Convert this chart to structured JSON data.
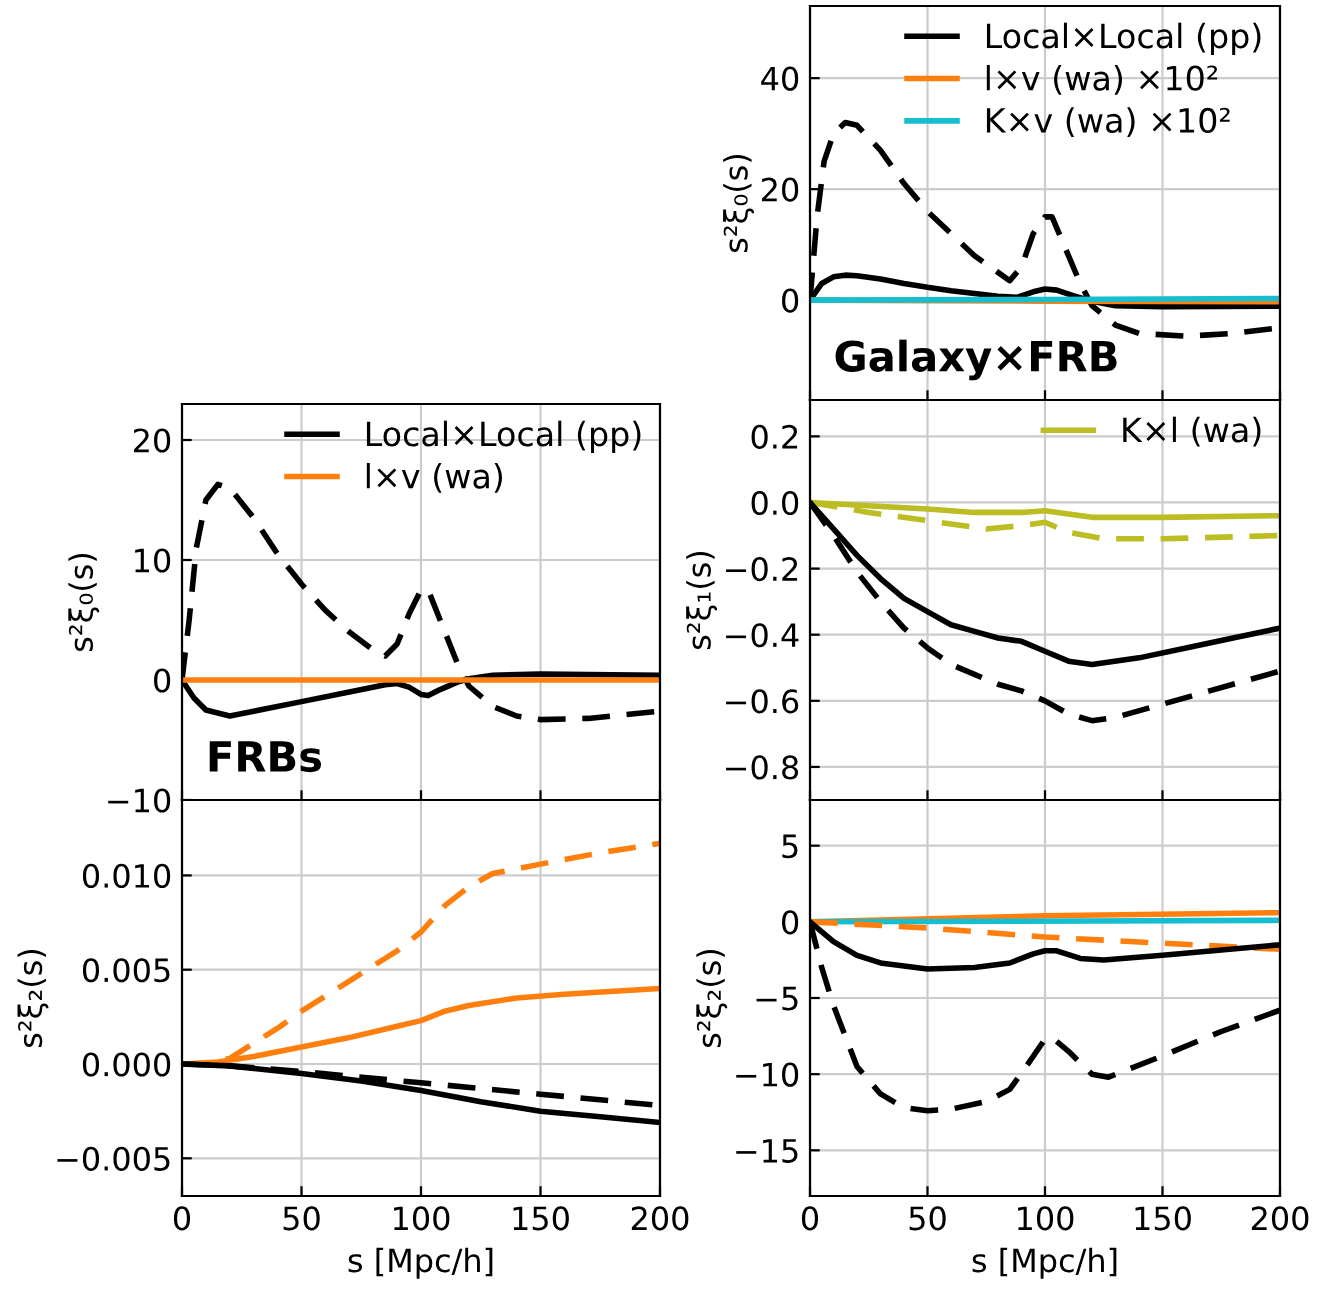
{
  "chart_data": [
    {
      "type": "line",
      "ylabel": "s²ξ₀(s)",
      "annotations": [
        "Galaxy×FRB"
      ],
      "xlim": [
        0,
        200
      ],
      "xticks": [
        0,
        50,
        100,
        150,
        200
      ],
      "ylim": [
        -18,
        53
      ],
      "yticks": [
        0,
        20,
        40
      ],
      "grid": true,
      "legend": "top right",
      "tick_labels": "y",
      "series": [
        {
          "name": "Local×Local (pp)",
          "color": "#000000",
          "line_style": "solid",
          "x": [
            0,
            5,
            10,
            15,
            20,
            30,
            40,
            50,
            60,
            70,
            80,
            88,
            95,
            100,
            105,
            112,
            120,
            130,
            150,
            200
          ],
          "values": [
            0,
            3,
            4.2,
            4.5,
            4.4,
            3.8,
            3,
            2.3,
            1.7,
            1.2,
            0.7,
            0.5,
            1.5,
            2,
            1.8,
            0.8,
            -0.2,
            -1,
            -1.2,
            -1.1
          ]
        },
        {
          "color": "#000000",
          "line_style": "dashed",
          "x": [
            0,
            3,
            6,
            10,
            15,
            20,
            30,
            40,
            50,
            60,
            70,
            80,
            85,
            90,
            95,
            100,
            103,
            108,
            115,
            120,
            130,
            140,
            160,
            180,
            200
          ],
          "values": [
            0,
            15,
            25,
            30,
            32,
            31.5,
            27,
            21,
            16,
            12,
            8,
            5,
            3.5,
            6,
            12,
            15,
            15,
            10,
            3,
            -1,
            -4.5,
            -6,
            -6.5,
            -6,
            -5
          ]
        },
        {
          "name": "l×v (wa) ×10²",
          "color": "#ff7f0e",
          "line_style": "solid",
          "x": [
            0,
            100,
            200
          ],
          "values": [
            0,
            -0.2,
            -0.3
          ]
        },
        {
          "name": "K×v (wa) ×10²",
          "color": "#17becf",
          "line_style": "solid",
          "x": [
            0,
            100,
            200
          ],
          "values": [
            0,
            0.1,
            0.3
          ]
        }
      ]
    },
    {
      "type": "line",
      "ylabel": "s²ξ₀(s)",
      "annotations": [
        "FRBs"
      ],
      "xlim": [
        0,
        200
      ],
      "xticks": [
        0,
        50,
        100,
        150,
        200
      ],
      "ylim": [
        -10,
        23
      ],
      "yticks": [
        -10,
        0,
        10,
        20
      ],
      "grid": true,
      "legend": "top right",
      "tick_labels": "y",
      "series": [
        {
          "name": "Local×Local (pp)",
          "color": "#000000",
          "line_style": "solid",
          "x": [
            0,
            5,
            10,
            20,
            30,
            50,
            70,
            85,
            90,
            95,
            100,
            103,
            108,
            115,
            120,
            130,
            150,
            200
          ],
          "values": [
            0,
            -1.5,
            -2.5,
            -3,
            -2.6,
            -1.8,
            -1,
            -0.4,
            -0.3,
            -0.6,
            -1.2,
            -1.3,
            -0.8,
            -0.2,
            0.1,
            0.4,
            0.5,
            0.4
          ]
        },
        {
          "color": "#000000",
          "line_style": "dashed",
          "x": [
            0,
            3,
            6,
            10,
            15,
            20,
            30,
            40,
            50,
            60,
            70,
            80,
            85,
            90,
            95,
            100,
            103,
            108,
            115,
            120,
            130,
            140,
            150,
            170,
            200
          ],
          "values": [
            0,
            5,
            11,
            15,
            16.3,
            16,
            13.5,
            10.5,
            8,
            5.8,
            4,
            2.5,
            2,
            3,
            5.5,
            7.5,
            7.5,
            5,
            1.5,
            -0.5,
            -2.2,
            -3,
            -3.3,
            -3.2,
            -2.6
          ]
        },
        {
          "name": "l×v (wa)",
          "color": "#ff7f0e",
          "line_style": "solid",
          "x": [
            0,
            200
          ],
          "values": [
            0,
            0
          ]
        }
      ]
    },
    {
      "type": "line",
      "ylabel": "s²ξ₁(s)",
      "xlim": [
        0,
        200
      ],
      "xticks": [
        0,
        50,
        100,
        150,
        200
      ],
      "ylim": [
        -0.9,
        0.31
      ],
      "yticks": [
        {
          "value": -0.8,
          "label": "−0.8"
        },
        {
          "value": -0.6,
          "label": "−0.6"
        },
        {
          "value": -0.4,
          "label": "−0.4"
        },
        {
          "value": -0.2,
          "label": "−0.2"
        },
        {
          "value": 0,
          "label": "0.0"
        },
        {
          "value": 0.2,
          "label": "0.2"
        }
      ],
      "grid": true,
      "legend": "top right",
      "tick_labels": "y",
      "series": [
        {
          "name": "K×l (wa)",
          "color": "#bcbd22",
          "line_style": "solid",
          "x": [
            0,
            50,
            70,
            90,
            100,
            120,
            150,
            200
          ],
          "values": [
            0,
            -0.02,
            -0.03,
            -0.03,
            -0.025,
            -0.045,
            -0.045,
            -0.04
          ]
        },
        {
          "color": "#bcbd22",
          "line_style": "dashed",
          "x": [
            0,
            25,
            50,
            75,
            90,
            100,
            110,
            125,
            150,
            200
          ],
          "values": [
            0,
            -0.03,
            -0.055,
            -0.08,
            -0.07,
            -0.06,
            -0.09,
            -0.11,
            -0.11,
            -0.1
          ]
        },
        {
          "color": "#000000",
          "line_style": "solid",
          "x": [
            0,
            10,
            20,
            30,
            40,
            50,
            60,
            70,
            80,
            90,
            100,
            110,
            120,
            140,
            160,
            180,
            200
          ],
          "values": [
            0,
            -0.08,
            -0.16,
            -0.23,
            -0.29,
            -0.33,
            -0.37,
            -0.39,
            -0.41,
            -0.42,
            -0.45,
            -0.48,
            -0.49,
            -0.47,
            -0.44,
            -0.41,
            -0.38
          ]
        },
        {
          "color": "#000000",
          "line_style": "dashed",
          "x": [
            0,
            10,
            20,
            30,
            40,
            50,
            60,
            70,
            80,
            90,
            100,
            110,
            120,
            130,
            150,
            170,
            200
          ],
          "values": [
            0,
            -0.1,
            -0.21,
            -0.3,
            -0.38,
            -0.44,
            -0.49,
            -0.52,
            -0.55,
            -0.57,
            -0.6,
            -0.64,
            -0.66,
            -0.65,
            -0.61,
            -0.57,
            -0.51
          ]
        }
      ]
    },
    {
      "type": "line",
      "ylabel": "s²ξ₂(s)",
      "xlabel": "s [Mpc/h]",
      "xlim": [
        0,
        200
      ],
      "xticks": [
        0,
        50,
        100,
        150,
        200
      ],
      "ylim": [
        -0.007,
        0.014
      ],
      "yticks": [
        {
          "value": -0.005,
          "label": "−0.005"
        },
        {
          "value": 0,
          "label": "0.000"
        },
        {
          "value": 0.005,
          "label": "0.005"
        },
        {
          "value": 0.01,
          "label": "0.010"
        }
      ],
      "grid": true,
      "series": [
        {
          "color": "#ff7f0e",
          "line_style": "dashed",
          "x": [
            0,
            10,
            20,
            30,
            40,
            50,
            60,
            70,
            80,
            90,
            100,
            110,
            120,
            130,
            150,
            175,
            200
          ],
          "values": [
            0,
            0,
            0.0003,
            0.0011,
            0.0019,
            0.0028,
            0.0036,
            0.0044,
            0.0052,
            0.006,
            0.007,
            0.0084,
            0.0094,
            0.0101,
            0.0106,
            0.0112,
            0.0117
          ]
        },
        {
          "color": "#ff7f0e",
          "line_style": "solid",
          "x": [
            0,
            15,
            30,
            50,
            70,
            90,
            100,
            110,
            120,
            140,
            160,
            200
          ],
          "values": [
            0,
            0.0001,
            0.0004,
            0.0009,
            0.0014,
            0.002,
            0.0023,
            0.0028,
            0.0031,
            0.0035,
            0.0037,
            0.004
          ]
        },
        {
          "color": "#000000",
          "line_style": "solid",
          "x": [
            0,
            20,
            50,
            75,
            100,
            125,
            150,
            175,
            200
          ],
          "values": [
            0,
            -0.0001,
            -0.0005,
            -0.0009,
            -0.0014,
            -0.002,
            -0.0025,
            -0.0028,
            -0.0031
          ]
        },
        {
          "color": "#000000",
          "line_style": "dashed",
          "x": [
            0,
            20,
            50,
            100,
            150,
            200
          ],
          "values": [
            0,
            -0.0001,
            -0.0004,
            -0.001,
            -0.0016,
            -0.0022
          ]
        }
      ]
    },
    {
      "type": "line",
      "ylabel": "s²ξ₂(s)",
      "xlabel": "s [Mpc/h]",
      "xlim": [
        0,
        200
      ],
      "xticks": [
        0,
        50,
        100,
        150,
        200
      ],
      "ylim": [
        -18,
        8
      ],
      "yticks": [
        -15,
        -10,
        -5,
        0,
        5
      ],
      "grid": true,
      "series": [
        {
          "color": "#ff7f0e",
          "line_style": "solid",
          "x": [
            0,
            100,
            200
          ],
          "values": [
            0,
            0.4,
            0.6
          ]
        },
        {
          "color": "#17becf",
          "line_style": "solid",
          "x": [
            0,
            200
          ],
          "values": [
            0,
            0.1
          ]
        },
        {
          "color": "#ff7f0e",
          "line_style": "dashed",
          "x": [
            0,
            50,
            100,
            150,
            200
          ],
          "values": [
            0,
            -0.4,
            -1,
            -1.4,
            -1.8
          ]
        },
        {
          "color": "#000000",
          "line_style": "solid",
          "x": [
            0,
            10,
            20,
            30,
            50,
            70,
            85,
            95,
            100,
            105,
            115,
            125,
            150,
            200
          ],
          "values": [
            0,
            -1.3,
            -2.2,
            -2.7,
            -3.1,
            -3,
            -2.7,
            -2.1,
            -1.9,
            -1.9,
            -2.4,
            -2.5,
            -2.2,
            -1.5
          ]
        },
        {
          "color": "#000000",
          "line_style": "dashed",
          "x": [
            0,
            5,
            10,
            20,
            30,
            40,
            50,
            60,
            75,
            85,
            92,
            100,
            103,
            110,
            120,
            127,
            150,
            175,
            200
          ],
          "values": [
            0,
            -3,
            -5.5,
            -9.5,
            -11.3,
            -12.2,
            -12.4,
            -12.3,
            -11.8,
            -11,
            -9.5,
            -7.7,
            -7.6,
            -8.5,
            -10,
            -10.2,
            -8.8,
            -7.2,
            -5.8
          ]
        }
      ]
    }
  ]
}
